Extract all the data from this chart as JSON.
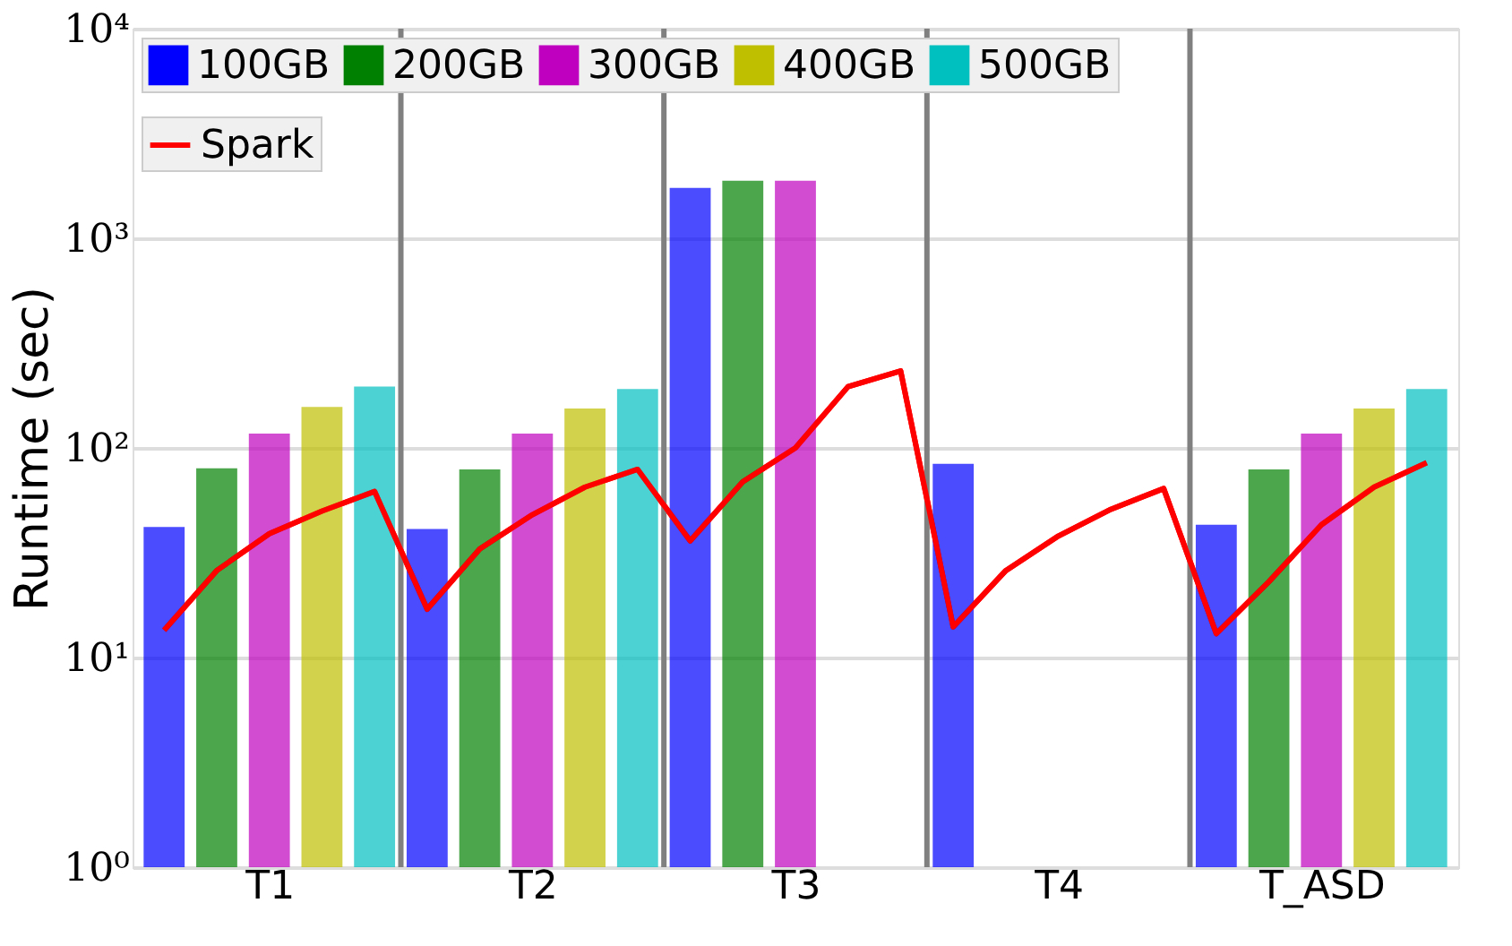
{
  "chart_data": {
    "type": "bar",
    "ylabel": "Runtime (sec)",
    "categories": [
      null,
      null,
      "T1",
      null,
      null,
      null,
      null,
      "T2",
      null,
      null,
      null,
      null,
      "T3",
      null,
      null,
      null,
      null,
      "T4",
      null,
      null,
      null,
      null,
      "T_ASD",
      null,
      null
    ],
    "log": true,
    "ylim": [
      1,
      10000
    ],
    "yticks": [
      {
        "value": 1,
        "label": "10⁰"
      },
      {
        "value": 10,
        "label": "10¹"
      },
      {
        "value": 100,
        "label": "10²"
      },
      {
        "value": 1000,
        "label": "10³"
      },
      {
        "value": 10000,
        "label": "10⁴"
      }
    ],
    "grid": "y",
    "legend": "top left",
    "series": [
      {
        "name": "100GB",
        "color": "#0000ff",
        "values": [
          42,
          null,
          null,
          null,
          null,
          41,
          null,
          null,
          null,
          null,
          1740,
          null,
          null,
          null,
          null,
          84,
          null,
          null,
          null,
          null,
          43,
          null,
          null,
          null,
          null
        ]
      },
      {
        "name": "200GB",
        "color": "#008000",
        "values": [
          null,
          80,
          null,
          null,
          null,
          null,
          79,
          null,
          null,
          null,
          null,
          1880,
          null,
          null,
          null,
          null,
          null,
          null,
          null,
          null,
          null,
          79,
          null,
          null,
          null
        ]
      },
      {
        "name": "300GB",
        "color": "#bf00bf",
        "values": [
          null,
          null,
          117,
          null,
          null,
          null,
          null,
          117,
          null,
          null,
          null,
          null,
          1880,
          null,
          null,
          null,
          null,
          null,
          null,
          null,
          null,
          null,
          117,
          null,
          null
        ]
      },
      {
        "name": "400GB",
        "color": "#bfbf00",
        "values": [
          null,
          null,
          null,
          157,
          null,
          null,
          null,
          null,
          154,
          null,
          null,
          null,
          null,
          null,
          null,
          null,
          null,
          null,
          null,
          null,
          null,
          null,
          null,
          154,
          null
        ]
      },
      {
        "name": "500GB",
        "color": "#00bfbf",
        "values": [
          null,
          null,
          null,
          null,
          196,
          null,
          null,
          null,
          null,
          191,
          null,
          null,
          null,
          null,
          null,
          null,
          null,
          null,
          null,
          null,
          null,
          null,
          null,
          null,
          191
        ]
      },
      {
        "name": "Spark",
        "type": "line",
        "color": "#ff0000",
        "values": [
          13.5,
          26,
          39,
          50,
          62,
          17,
          33,
          48,
          65,
          79,
          36,
          69,
          100,
          196,
          233,
          14,
          26,
          38,
          51,
          64,
          13,
          23,
          43,
          65,
          85
        ]
      }
    ]
  }
}
